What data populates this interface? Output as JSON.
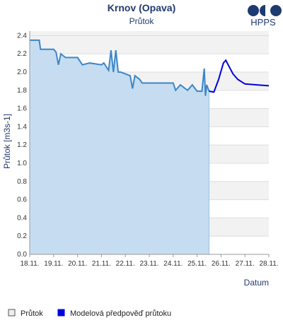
{
  "chart_data": {
    "type": "line",
    "title": "Krnov (Opava)",
    "subtitle": "Průtok",
    "logo": "HPPS",
    "y_label": "Průtok [m3s-1]",
    "x_label": "Datum",
    "grid": true,
    "xlim": [
      18,
      28
    ],
    "ylim": [
      0,
      2.45
    ],
    "xticks": [
      {
        "value": 18,
        "label": "18.11."
      },
      {
        "value": 19,
        "label": "19.11."
      },
      {
        "value": 20,
        "label": "20.11."
      },
      {
        "value": 21,
        "label": "21.11."
      },
      {
        "value": 22,
        "label": "22.11."
      },
      {
        "value": 23,
        "label": "23.11."
      },
      {
        "value": 24,
        "label": "24.11."
      },
      {
        "value": 25,
        "label": "25.11."
      },
      {
        "value": 26,
        "label": "26.11."
      },
      {
        "value": 27,
        "label": "27.11."
      },
      {
        "value": 28,
        "label": "28.11."
      }
    ],
    "yticks": [
      {
        "value": 0,
        "label": "0.0"
      },
      0.2,
      0.4,
      0.6,
      0.8,
      {
        "value": 1,
        "label": "1.0"
      },
      1.2,
      1.4,
      1.6,
      1.8,
      {
        "value": 2,
        "label": "2.0"
      },
      2.2,
      2.4
    ],
    "series": [
      {
        "name": "Průtok",
        "color": "#3d86c6",
        "fill": "#c6dcf1",
        "legend_color": "#eeeeee",
        "x": [
          18,
          18.4,
          18.45,
          19,
          19.1,
          19.2,
          19.3,
          19.5,
          20,
          20.2,
          20.5,
          21,
          21.1,
          21.3,
          21.4,
          21.5,
          21.6,
          21.7,
          21.8,
          22,
          22.2,
          22.3,
          22.4,
          22.6,
          22.7,
          23,
          23.5,
          24,
          24.1,
          24.3,
          24.6,
          24.8,
          25,
          25.2,
          25.3,
          25.35,
          25.4,
          25.5
        ],
        "values": [
          2.35,
          2.35,
          2.25,
          2.25,
          2.22,
          2.08,
          2.2,
          2.16,
          2.16,
          2.08,
          2.1,
          2.08,
          2.1,
          2.02,
          2.24,
          2.0,
          2.24,
          2.0,
          2.0,
          1.98,
          1.96,
          1.82,
          1.96,
          1.92,
          1.88,
          1.88,
          1.88,
          1.88,
          1.8,
          1.86,
          1.8,
          1.86,
          1.79,
          1.79,
          2.04,
          1.74,
          1.86,
          1.79
        ]
      },
      {
        "name": "Modelová předpověď průtoku",
        "color": "#0000dd",
        "x": [
          25.5,
          25.7,
          25.9,
          26.1,
          26.2,
          26.3,
          26.5,
          26.7,
          27,
          27.5,
          28
        ],
        "values": [
          1.79,
          1.78,
          1.92,
          2.1,
          2.13,
          2.08,
          1.98,
          1.92,
          1.87,
          1.86,
          1.85
        ]
      }
    ]
  }
}
